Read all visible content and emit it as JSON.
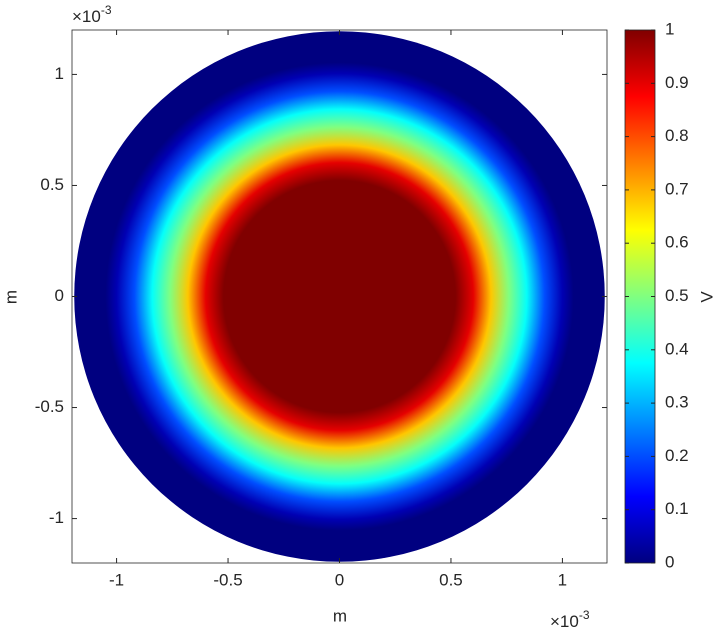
{
  "chart_data": {
    "type": "radial-heatmap",
    "xlabel": "m",
    "ylabel": "m",
    "x_multiplier": {
      "base": "×10",
      "exponent": "-3"
    },
    "y_multiplier": {
      "base": "×10",
      "exponent": "-3"
    },
    "xlim": [
      -1.2,
      1.2
    ],
    "ylim": [
      -1.2,
      1.2
    ],
    "xticks": [
      -1,
      -0.5,
      0,
      0.5,
      1
    ],
    "yticks": [
      -1,
      -0.5,
      0,
      0.5,
      1
    ],
    "disk_radius": 1.19,
    "radial_profile": {
      "r": [
        0,
        0.52,
        0.6,
        0.68,
        0.76,
        0.84,
        0.92,
        1.0,
        1.05,
        1.19
      ],
      "values": [
        1,
        1,
        0.9,
        0.68,
        0.5,
        0.38,
        0.2,
        0.05,
        0,
        0
      ]
    },
    "colorbar": {
      "label": "V",
      "lim": [
        0,
        1
      ],
      "ticks": [
        0,
        0.1,
        0.2,
        0.3,
        0.4,
        0.5,
        0.6,
        0.7,
        0.8,
        0.9,
        1
      ]
    }
  }
}
